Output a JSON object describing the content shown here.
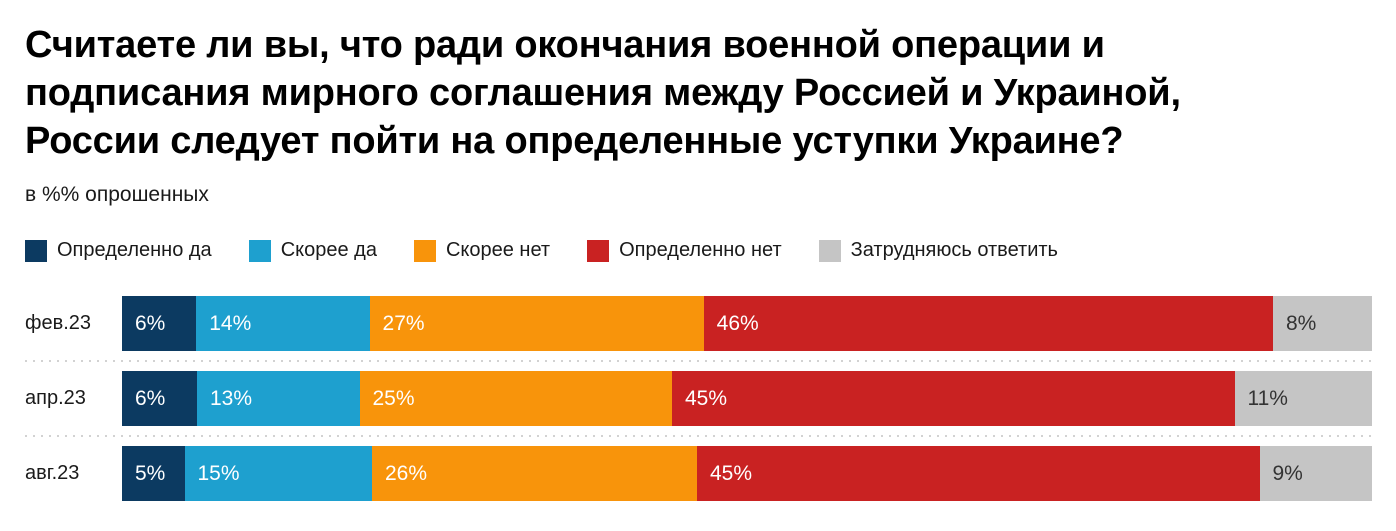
{
  "header": {
    "title_lines": [
      "Считаете ли вы, что ради окончания военной операции и",
      "подписания мирного соглашения между Россией и Украиной,",
      "России следует пойти на определенные уступки Украине?"
    ],
    "subtitle": "в %% опрошенных"
  },
  "colors": {
    "definitely_yes": "#0c3a61",
    "rather_yes": "#1ea0cf",
    "rather_no": "#f8940b",
    "definitely_no": "#c92222",
    "hard_to_answer": "#c5c5c5",
    "value_label_light": "#ffffff",
    "value_label_dark": "#333333",
    "divider": "#d2d2d2",
    "text": "#1a1a1a"
  },
  "chart_data": {
    "type": "bar",
    "subtype": "horizontal-stacked-100",
    "title": "Считаете ли вы, что ради окончания военной операции и подписания мирного соглашения между Россией и Украиной, России следует пойти на определенные уступки Украине?",
    "units_note": "в %% опрошенных",
    "legend_position": "top",
    "grid": false,
    "axes_shown": false,
    "value_suffix": "%",
    "xlim": [
      0,
      100
    ],
    "categories": [
      "фев.23",
      "апр.23",
      "авг.23"
    ],
    "series": [
      {
        "name": "Определенно да",
        "color": "#0c3a61",
        "label_color": "#ffffff",
        "values": [
          6,
          6,
          5
        ]
      },
      {
        "name": "Скорее да",
        "color": "#1ea0cf",
        "label_color": "#ffffff",
        "values": [
          14,
          13,
          15
        ]
      },
      {
        "name": "Скорее нет",
        "color": "#f8940b",
        "label_color": "#ffffff",
        "values": [
          27,
          25,
          26
        ]
      },
      {
        "name": "Определенно нет",
        "color": "#c92222",
        "label_color": "#ffffff",
        "values": [
          46,
          45,
          45
        ]
      },
      {
        "name": "Затрудняюсь ответить",
        "color": "#c5c5c5",
        "label_color": "#333333",
        "values": [
          8,
          11,
          9
        ]
      }
    ]
  }
}
